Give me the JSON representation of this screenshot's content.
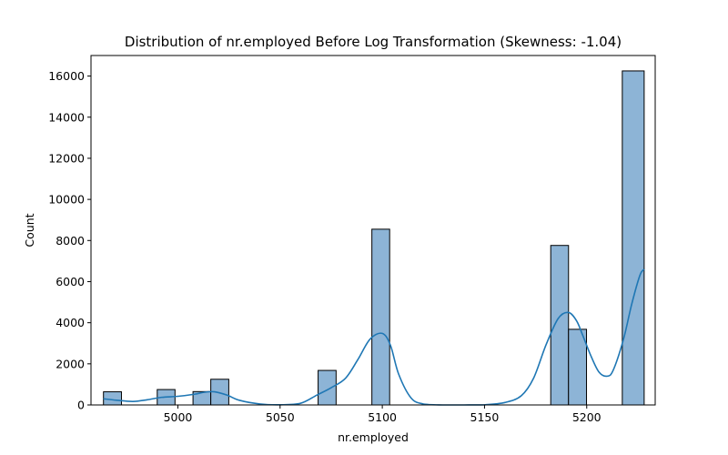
{
  "chart_data": {
    "type": "bar",
    "title": "Distribution of nr.employed Before Log Transformation (Skewness: -1.04)",
    "xlabel": "nr.employed",
    "ylabel": "Count",
    "xlim": [
      4957.5,
      5233.5
    ],
    "ylim": [
      0,
      17000
    ],
    "xticks": [
      5000,
      5050,
      5100,
      5150,
      5200
    ],
    "yticks": [
      0,
      2000,
      4000,
      6000,
      8000,
      10000,
      12000,
      14000,
      16000
    ],
    "bin_edges": [
      4963.6,
      4972.4,
      4981.1,
      4989.9,
      4998.6,
      5007.4,
      5016.1,
      5024.9,
      5033.6,
      5042.4,
      5051.1,
      5059.9,
      5068.6,
      5077.4,
      5086.1,
      5094.9,
      5103.6,
      5112.4,
      5121.1,
      5129.9,
      5138.6,
      5147.4,
      5156.1,
      5164.9,
      5173.6,
      5182.4,
      5191.1,
      5199.9,
      5208.6,
      5217.4,
      5228.1
    ],
    "counts": [
      640,
      0,
      0,
      750,
      0,
      650,
      1250,
      0,
      0,
      0,
      0,
      0,
      1680,
      0,
      0,
      8550,
      0,
      0,
      0,
      0,
      0,
      0,
      0,
      0,
      0,
      7760,
      3680,
      0,
      0,
      16250
    ],
    "kde": {
      "x": [
        4963.6,
        4970,
        4978,
        4985,
        4992,
        5000,
        5008,
        5013,
        5018,
        5024,
        5030,
        5040,
        5050,
        5060,
        5068,
        5075,
        5082,
        5088,
        5094,
        5100,
        5104,
        5108,
        5114,
        5120,
        5130,
        5140,
        5150,
        5160,
        5168,
        5174,
        5180,
        5186,
        5191,
        5195,
        5198,
        5202,
        5206,
        5210,
        5213,
        5218,
        5222,
        5226,
        5228.1
      ],
      "y": [
        300,
        230,
        170,
        250,
        370,
        420,
        520,
        620,
        640,
        480,
        230,
        50,
        10,
        80,
        480,
        840,
        1300,
        2200,
        3200,
        3480,
        2900,
        1500,
        350,
        50,
        0,
        0,
        10,
        120,
        450,
        1300,
        2900,
        4200,
        4500,
        4100,
        3400,
        2400,
        1600,
        1400,
        1700,
        3200,
        4900,
        6300,
        6600
      ]
    },
    "colors": {
      "bar_fill": "#8db4d6",
      "bar_edge": "#000000",
      "kde_line": "#1f77b4"
    }
  }
}
